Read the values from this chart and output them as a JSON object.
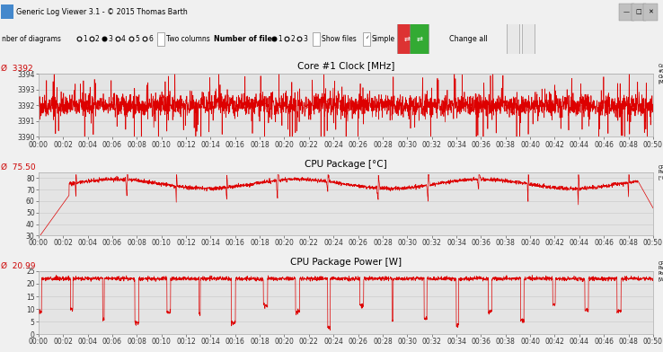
{
  "title_bar": "Generic Log Viewer 3.1 - © 2015 Thomas Barth",
  "bg_color": "#f0f0f0",
  "chart_bg": "#e4e4e4",
  "line_color": "#dd0000",
  "grid_color": "#cccccc",
  "clock_title": "Core #1 Clock [MHz]",
  "clock_avg": "3392",
  "clock_ylim": [
    3390,
    3394
  ],
  "clock_yticks": [
    3390,
    3391,
    3392,
    3393,
    3394
  ],
  "clock_label": "Core #1 Clock [MHz]",
  "temp_title": "CPU Package [°C]",
  "temp_avg": "75.50",
  "temp_ylim": [
    30,
    85
  ],
  "temp_yticks": [
    30,
    40,
    50,
    60,
    70,
    80
  ],
  "temp_label": "CPU Package [°C]",
  "power_title": "CPU Package Power [W]",
  "power_avg": "20.99",
  "power_ylim": [
    0,
    25
  ],
  "power_yticks": [
    0,
    5,
    10,
    15,
    20,
    25
  ],
  "power_label": "CPU Package Power [W]",
  "tick_fontsize": 5.5,
  "title_fontsize": 7.5,
  "avg_fontsize": 6.5,
  "label_fontsize": 5
}
